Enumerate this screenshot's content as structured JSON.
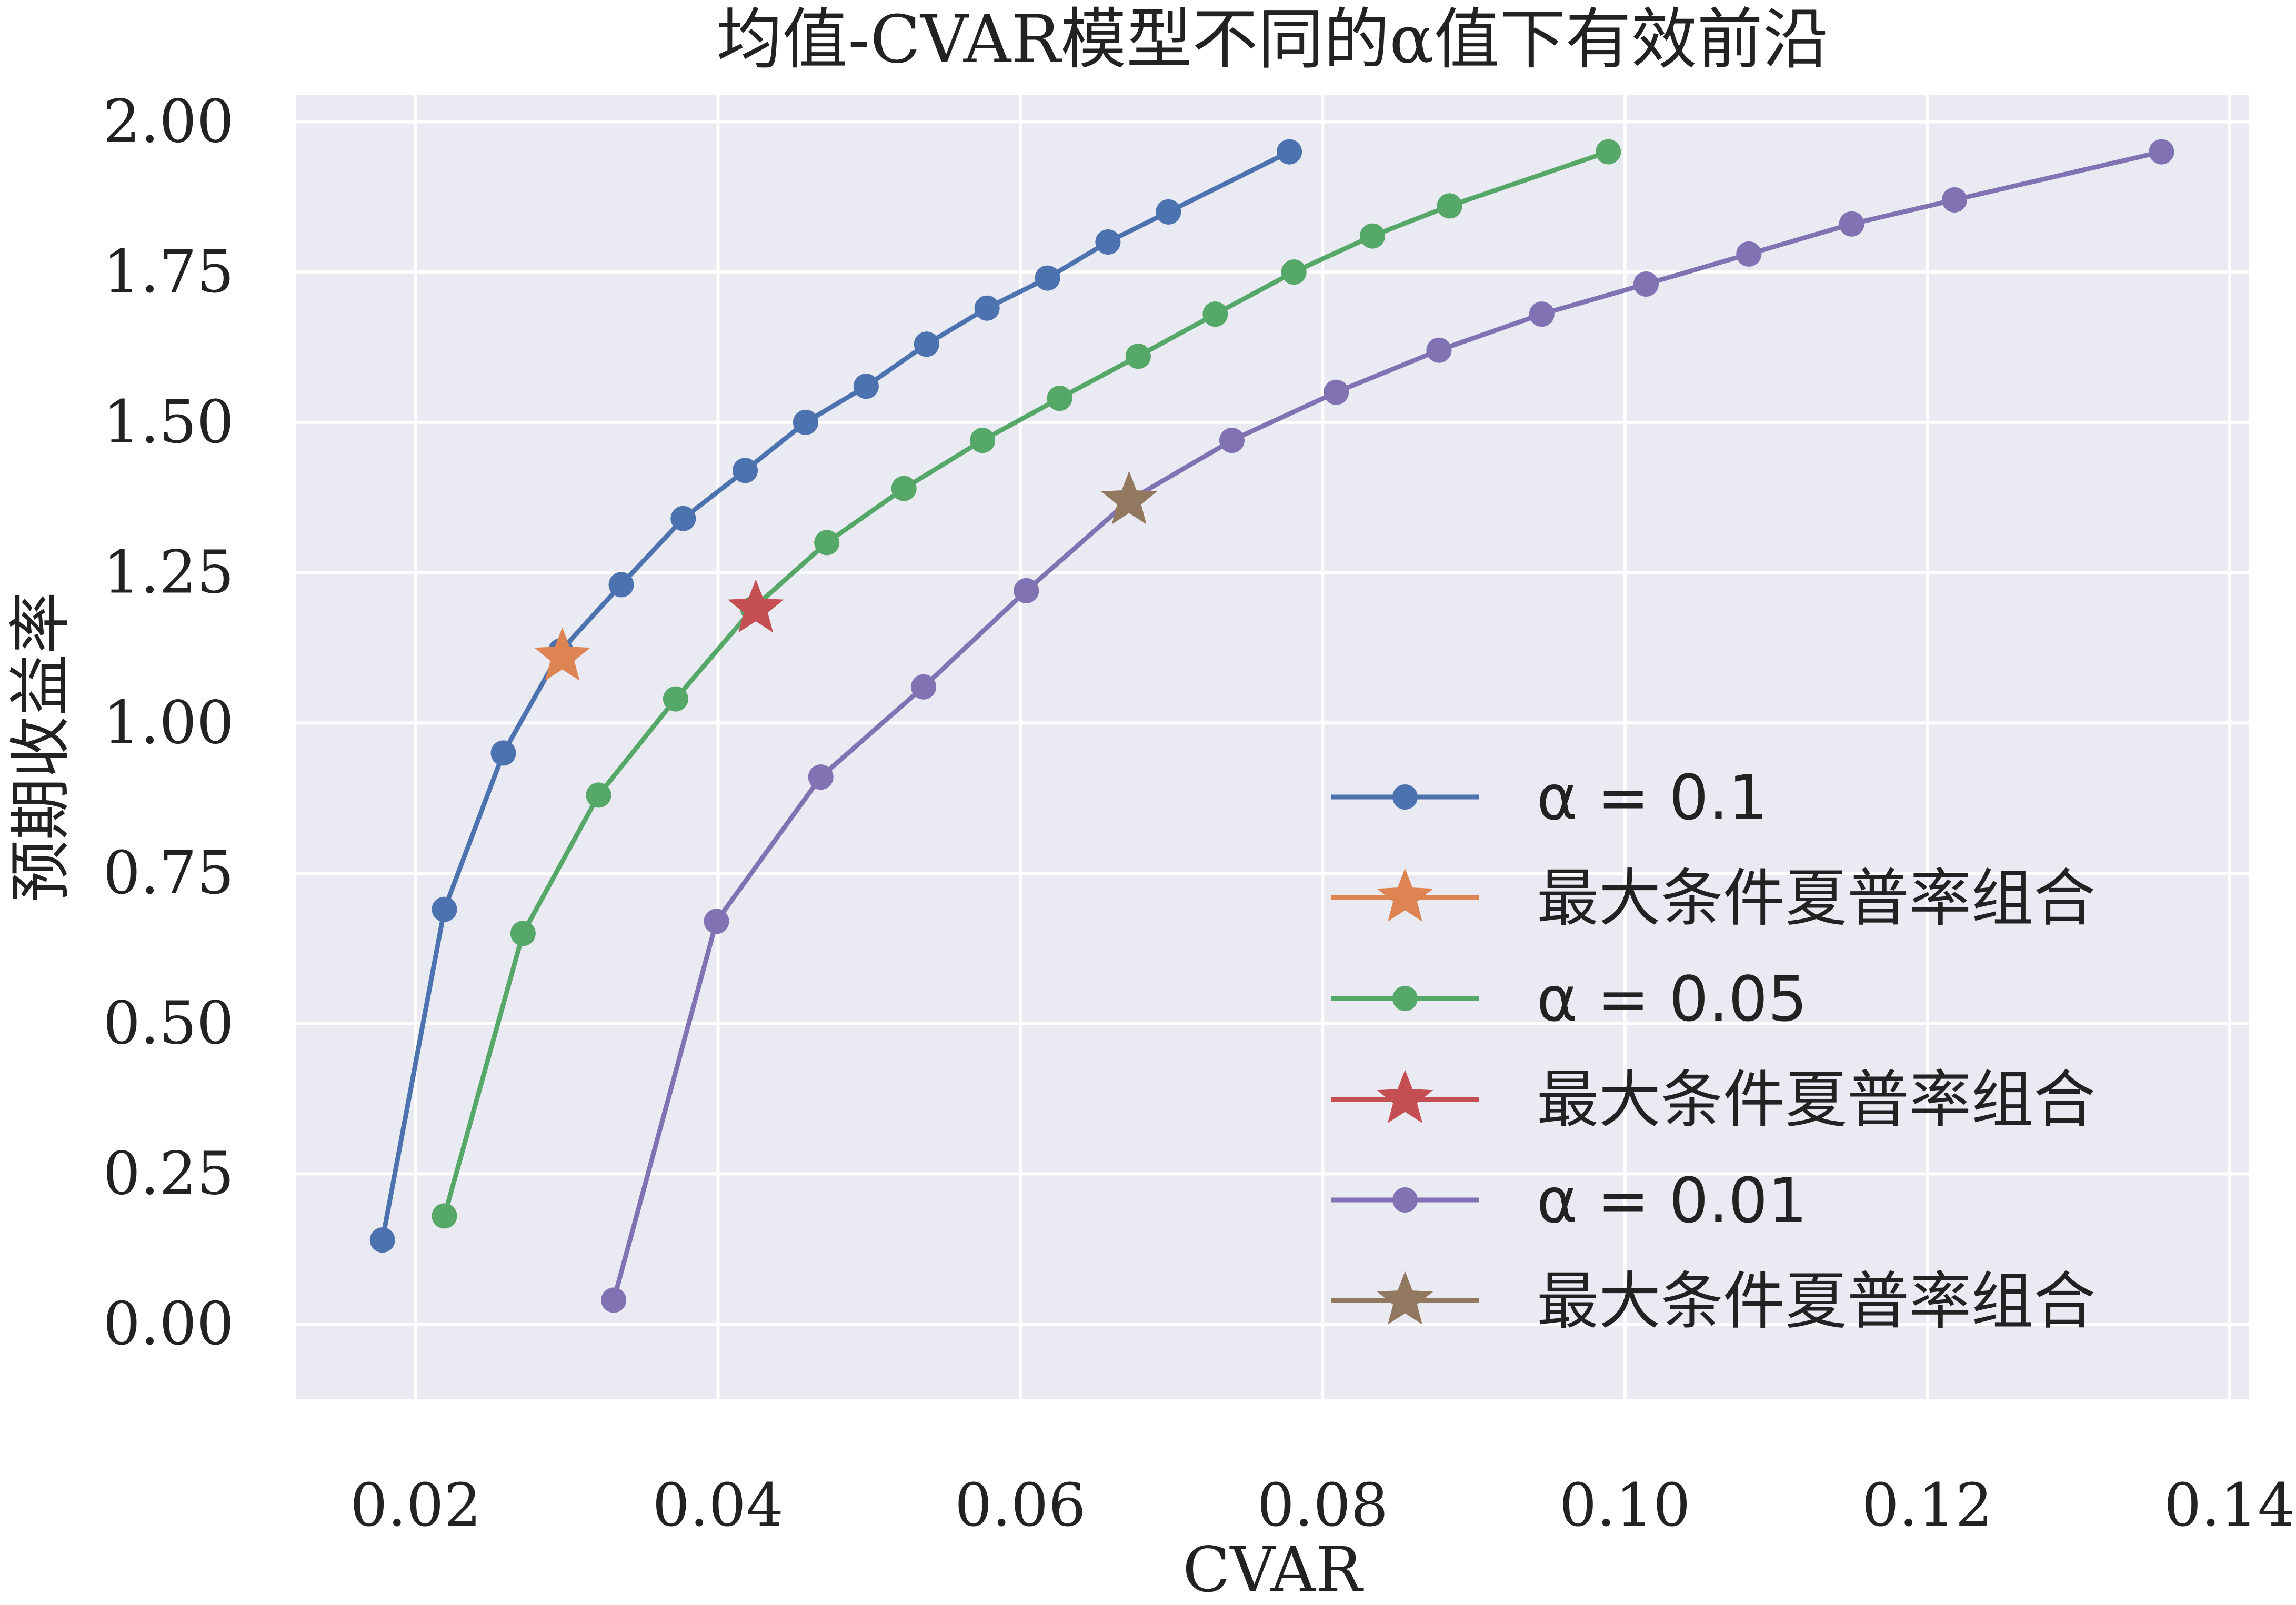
{
  "chart_data": {
    "type": "line",
    "title": "均值-CVAR模型不同的α值下有效前沿",
    "xlabel": "CVAR",
    "ylabel": "预期收益率",
    "xlim": [
      0.0121,
      0.1413
    ],
    "ylim": [
      -0.125,
      2.045
    ],
    "xticks": [
      0.02,
      0.04,
      0.06,
      0.08,
      0.1,
      0.12,
      0.14
    ],
    "xtick_labels": [
      "0.02",
      "0.04",
      "0.06",
      "0.08",
      "0.10",
      "0.12",
      "0.14"
    ],
    "yticks": [
      0.0,
      0.25,
      0.5,
      0.75,
      1.0,
      1.25,
      1.5,
      1.75,
      2.0
    ],
    "ytick_labels": [
      "0.00",
      "0.25",
      "0.50",
      "0.75",
      "1.00",
      "1.25",
      "1.50",
      "1.75",
      "2.00"
    ],
    "grid": true,
    "legend_position": "lower-right",
    "series": [
      {
        "name": "α = 0.1",
        "color": "#4c72b0",
        "marker": "circle",
        "x": [
          0.0178,
          0.0219,
          0.0258,
          0.0296,
          0.0336,
          0.0377,
          0.0418,
          0.0458,
          0.0498,
          0.0538,
          0.0578,
          0.0618,
          0.0658,
          0.0698,
          0.0778
        ],
        "y": [
          0.14,
          0.69,
          0.95,
          1.12,
          1.23,
          1.34,
          1.42,
          1.5,
          1.56,
          1.63,
          1.69,
          1.74,
          1.8,
          1.85,
          1.95
        ]
      },
      {
        "name": "最大条件夏普率组合",
        "color": "#dd8452",
        "marker": "star",
        "x": [
          0.0297
        ],
        "y": [
          1.11
        ]
      },
      {
        "name": "α = 0.05",
        "color": "#55a868",
        "marker": "circle",
        "x": [
          0.0219,
          0.0271,
          0.0321,
          0.0372,
          0.0423,
          0.0472,
          0.0523,
          0.0575,
          0.0626,
          0.0678,
          0.0729,
          0.0781,
          0.0833,
          0.0884,
          0.0989
        ],
        "y": [
          0.18,
          0.65,
          0.88,
          1.04,
          1.19,
          1.3,
          1.39,
          1.47,
          1.54,
          1.61,
          1.68,
          1.75,
          1.81,
          1.86,
          1.95
        ]
      },
      {
        "name": "最大条件夏普率组合",
        "color": "#c44e52",
        "marker": "star",
        "x": [
          0.0425
        ],
        "y": [
          1.19
        ]
      },
      {
        "name": "α = 0.01",
        "color": "#8172b3",
        "marker": "circle",
        "x": [
          0.0331,
          0.0399,
          0.0468,
          0.0536,
          0.0604,
          0.0672,
          0.074,
          0.0809,
          0.0877,
          0.0945,
          0.1014,
          0.1082,
          0.115,
          0.1218,
          0.1355
        ],
        "y": [
          0.04,
          0.67,
          0.91,
          1.06,
          1.22,
          1.37,
          1.47,
          1.55,
          1.62,
          1.68,
          1.73,
          1.78,
          1.83,
          1.87,
          1.95
        ]
      },
      {
        "name": "最大条件夏普率组合",
        "color": "#937860",
        "marker": "star",
        "x": [
          0.0672
        ],
        "y": [
          1.37
        ]
      }
    ]
  }
}
